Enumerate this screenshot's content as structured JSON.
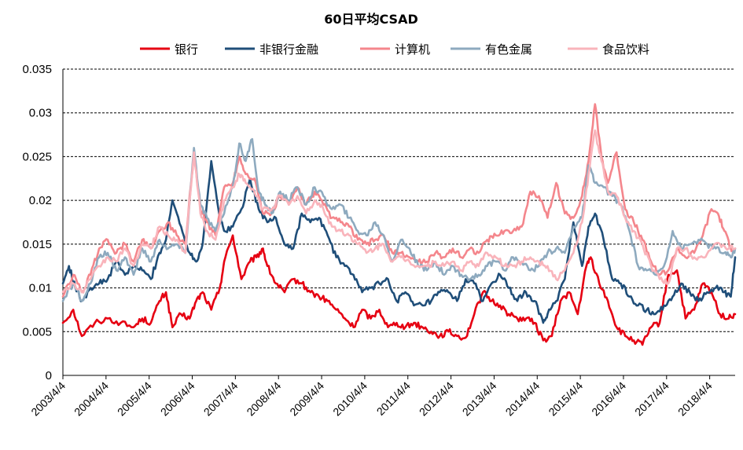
{
  "chart_data": {
    "type": "line",
    "title": "60日平均CSAD",
    "xlabel": "",
    "ylabel": "",
    "ylim": [
      0,
      0.035
    ],
    "yticks": [
      0,
      0.005,
      0.01,
      0.015,
      0.02,
      0.025,
      0.03,
      0.035
    ],
    "ytick_labels": [
      "0",
      "0.005",
      "0.01",
      "0.015",
      "0.02",
      "0.025",
      "0.03",
      "0.035"
    ],
    "xlim": [
      2003.26,
      2018.85
    ],
    "xticks": [
      2003.26,
      2004.26,
      2005.26,
      2006.26,
      2007.26,
      2008.26,
      2009.26,
      2010.26,
      2011.26,
      2012.26,
      2013.26,
      2014.26,
      2015.26,
      2016.26,
      2017.26,
      2018.26
    ],
    "xtick_labels": [
      "2003/4/4",
      "2004/4/4",
      "2005/4/4",
      "2006/4/4",
      "2007/4/4",
      "2008/4/4",
      "2009/4/4",
      "2010/4/4",
      "2011/4/4",
      "2012/4/4",
      "2013/4/4",
      "2014/4/4",
      "2015/4/4",
      "2016/4/4",
      "2017/4/4",
      "2018/4/4"
    ],
    "grid": true,
    "legend_position": "top",
    "series": [
      {
        "name": "银行",
        "color": "#e60012",
        "x": [
          2003.26,
          2003.5,
          2003.7,
          2004.0,
          2004.3,
          2004.6,
          2004.9,
          2005.1,
          2005.3,
          2005.5,
          2005.65,
          2005.8,
          2006.0,
          2006.2,
          2006.35,
          2006.5,
          2006.7,
          2006.9,
          2007.0,
          2007.2,
          2007.4,
          2007.6,
          2007.75,
          2007.9,
          2008.0,
          2008.2,
          2008.4,
          2008.6,
          2008.8,
          2009.0,
          2009.2,
          2009.4,
          2009.6,
          2009.8,
          2010.0,
          2010.2,
          2010.4,
          2010.6,
          2010.8,
          2011.0,
          2011.2,
          2011.4,
          2011.6,
          2011.8,
          2012.0,
          2012.2,
          2012.4,
          2012.6,
          2012.8,
          2013.0,
          2013.2,
          2013.4,
          2013.6,
          2013.8,
          2014.0,
          2014.2,
          2014.4,
          2014.6,
          2014.8,
          2015.0,
          2015.2,
          2015.4,
          2015.5,
          2015.7,
          2015.9,
          2016.1,
          2016.3,
          2016.5,
          2016.7,
          2016.9,
          2017.1,
          2017.3,
          2017.5,
          2017.7,
          2017.9,
          2018.1,
          2018.3,
          2018.5,
          2018.7,
          2018.85
        ],
        "values": [
          0.006,
          0.0075,
          0.0045,
          0.006,
          0.0065,
          0.006,
          0.0055,
          0.0065,
          0.006,
          0.0085,
          0.0095,
          0.0055,
          0.007,
          0.0065,
          0.0085,
          0.0095,
          0.0075,
          0.01,
          0.013,
          0.016,
          0.011,
          0.013,
          0.0135,
          0.0145,
          0.0125,
          0.0105,
          0.0095,
          0.011,
          0.0105,
          0.0095,
          0.009,
          0.0085,
          0.0075,
          0.0065,
          0.0055,
          0.0075,
          0.0065,
          0.0075,
          0.0055,
          0.006,
          0.0055,
          0.006,
          0.0055,
          0.005,
          0.0045,
          0.005,
          0.0045,
          0.0043,
          0.007,
          0.0095,
          0.0085,
          0.008,
          0.007,
          0.0065,
          0.0065,
          0.006,
          0.004,
          0.0045,
          0.0085,
          0.0095,
          0.007,
          0.0125,
          0.0135,
          0.0105,
          0.0085,
          0.0055,
          0.0045,
          0.004,
          0.0035,
          0.0055,
          0.006,
          0.0115,
          0.012,
          0.0065,
          0.0075,
          0.0105,
          0.0095,
          0.007,
          0.0065,
          0.007
        ]
      },
      {
        "name": "非银行金融",
        "color": "#1f4e79",
        "x": [
          2003.26,
          2003.4,
          2003.55,
          2003.7,
          2003.9,
          2004.1,
          2004.3,
          2004.5,
          2004.7,
          2004.9,
          2005.1,
          2005.3,
          2005.5,
          2005.65,
          2005.8,
          2006.0,
          2006.2,
          2006.35,
          2006.5,
          2006.7,
          2006.9,
          2007.0,
          2007.2,
          2007.4,
          2007.6,
          2007.8,
          2008.0,
          2008.2,
          2008.4,
          2008.6,
          2008.8,
          2009.0,
          2009.2,
          2009.4,
          2009.6,
          2009.8,
          2010.0,
          2010.2,
          2010.4,
          2010.6,
          2010.8,
          2011.0,
          2011.2,
          2011.4,
          2011.6,
          2011.8,
          2012.0,
          2012.2,
          2012.4,
          2012.6,
          2012.8,
          2013.0,
          2013.2,
          2013.4,
          2013.6,
          2013.8,
          2014.0,
          2014.2,
          2014.4,
          2014.5,
          2014.7,
          2014.9,
          2015.1,
          2015.3,
          2015.45,
          2015.6,
          2015.8,
          2016.0,
          2016.2,
          2016.4,
          2016.6,
          2016.8,
          2017.0,
          2017.2,
          2017.4,
          2017.6,
          2017.8,
          2018.0,
          2018.2,
          2018.4,
          2018.6,
          2018.75,
          2018.85
        ],
        "values": [
          0.0105,
          0.0125,
          0.01,
          0.0085,
          0.01,
          0.0105,
          0.011,
          0.013,
          0.0115,
          0.0125,
          0.012,
          0.011,
          0.014,
          0.0155,
          0.02,
          0.017,
          0.014,
          0.013,
          0.015,
          0.0245,
          0.018,
          0.0165,
          0.017,
          0.019,
          0.0225,
          0.019,
          0.0175,
          0.018,
          0.015,
          0.0145,
          0.0185,
          0.0175,
          0.018,
          0.016,
          0.0135,
          0.0125,
          0.0115,
          0.0095,
          0.01,
          0.0105,
          0.011,
          0.0085,
          0.0095,
          0.008,
          0.008,
          0.0085,
          0.0095,
          0.0095,
          0.0085,
          0.011,
          0.0105,
          0.0085,
          0.0105,
          0.0115,
          0.01,
          0.0085,
          0.0095,
          0.0085,
          0.006,
          0.007,
          0.0085,
          0.011,
          0.0175,
          0.0125,
          0.017,
          0.0185,
          0.0155,
          0.011,
          0.0105,
          0.009,
          0.008,
          0.0075,
          0.007,
          0.008,
          0.009,
          0.0105,
          0.0095,
          0.0085,
          0.0095,
          0.01,
          0.0095,
          0.009,
          0.0135
        ]
      },
      {
        "name": "计算机",
        "color": "#f4868c",
        "x": [
          2003.26,
          2003.5,
          2003.7,
          2003.9,
          2004.1,
          2004.3,
          2004.5,
          2004.7,
          2004.9,
          2005.1,
          2005.3,
          2005.5,
          2005.7,
          2005.9,
          2006.1,
          2006.3,
          2006.45,
          2006.6,
          2006.8,
          2007.0,
          2007.2,
          2007.35,
          2007.5,
          2007.7,
          2007.9,
          2008.1,
          2008.3,
          2008.5,
          2008.7,
          2008.9,
          2009.1,
          2009.3,
          2009.5,
          2009.7,
          2009.9,
          2010.1,
          2010.3,
          2010.5,
          2010.7,
          2010.9,
          2011.1,
          2011.3,
          2011.5,
          2011.7,
          2011.9,
          2012.1,
          2012.3,
          2012.5,
          2012.7,
          2012.9,
          2013.1,
          2013.3,
          2013.5,
          2013.7,
          2013.9,
          2014.1,
          2014.3,
          2014.5,
          2014.7,
          2014.9,
          2015.1,
          2015.3,
          2015.45,
          2015.6,
          2015.75,
          2015.9,
          2016.1,
          2016.3,
          2016.5,
          2016.7,
          2016.9,
          2017.1,
          2017.3,
          2017.5,
          2017.7,
          2017.9,
          2018.1,
          2018.3,
          2018.45,
          2018.6,
          2018.75,
          2018.85
        ],
        "values": [
          0.009,
          0.0115,
          0.0095,
          0.0115,
          0.0145,
          0.0155,
          0.014,
          0.015,
          0.013,
          0.0155,
          0.0145,
          0.0165,
          0.0175,
          0.016,
          0.015,
          0.0255,
          0.019,
          0.0175,
          0.016,
          0.0215,
          0.022,
          0.025,
          0.023,
          0.0225,
          0.0185,
          0.0185,
          0.0205,
          0.0195,
          0.0215,
          0.0195,
          0.021,
          0.0195,
          0.018,
          0.0175,
          0.017,
          0.0155,
          0.015,
          0.0155,
          0.016,
          0.014,
          0.014,
          0.0135,
          0.013,
          0.013,
          0.014,
          0.0135,
          0.0145,
          0.0135,
          0.0145,
          0.014,
          0.0155,
          0.016,
          0.0165,
          0.0165,
          0.017,
          0.021,
          0.0205,
          0.018,
          0.022,
          0.0185,
          0.018,
          0.0205,
          0.0245,
          0.031,
          0.025,
          0.022,
          0.0255,
          0.019,
          0.0175,
          0.0155,
          0.013,
          0.0115,
          0.012,
          0.0145,
          0.0135,
          0.014,
          0.016,
          0.019,
          0.0185,
          0.0165,
          0.0145,
          0.0145
        ]
      },
      {
        "name": "有色金属",
        "color": "#8eaabf",
        "x": [
          2003.26,
          2003.5,
          2003.7,
          2003.9,
          2004.1,
          2004.3,
          2004.5,
          2004.7,
          2004.9,
          2005.1,
          2005.3,
          2005.5,
          2005.7,
          2005.9,
          2006.1,
          2006.3,
          2006.45,
          2006.6,
          2006.8,
          2007.0,
          2007.2,
          2007.35,
          2007.5,
          2007.65,
          2007.8,
          2007.95,
          2008.1,
          2008.3,
          2008.5,
          2008.7,
          2008.9,
          2009.1,
          2009.3,
          2009.5,
          2009.7,
          2009.9,
          2010.1,
          2010.3,
          2010.5,
          2010.7,
          2010.9,
          2011.1,
          2011.3,
          2011.5,
          2011.7,
          2011.9,
          2012.1,
          2012.3,
          2012.5,
          2012.7,
          2012.9,
          2013.1,
          2013.3,
          2013.5,
          2013.7,
          2013.9,
          2014.1,
          2014.3,
          2014.5,
          2014.7,
          2014.9,
          2015.1,
          2015.3,
          2015.45,
          2015.6,
          2015.8,
          2016.0,
          2016.2,
          2016.4,
          2016.6,
          2016.8,
          2017.0,
          2017.2,
          2017.4,
          2017.6,
          2017.8,
          2018.0,
          2018.2,
          2018.4,
          2018.6,
          2018.75,
          2018.85
        ],
        "values": [
          0.0085,
          0.0105,
          0.0085,
          0.0105,
          0.0135,
          0.014,
          0.012,
          0.0135,
          0.0115,
          0.0145,
          0.013,
          0.0155,
          0.0145,
          0.015,
          0.014,
          0.026,
          0.0195,
          0.018,
          0.0165,
          0.0185,
          0.0215,
          0.0265,
          0.0245,
          0.027,
          0.021,
          0.0195,
          0.0185,
          0.021,
          0.02,
          0.0215,
          0.0195,
          0.0215,
          0.0205,
          0.019,
          0.0195,
          0.018,
          0.0165,
          0.016,
          0.0175,
          0.016,
          0.013,
          0.0155,
          0.0145,
          0.0125,
          0.012,
          0.013,
          0.0115,
          0.0125,
          0.0115,
          0.011,
          0.0115,
          0.0125,
          0.013,
          0.012,
          0.0135,
          0.013,
          0.012,
          0.0125,
          0.014,
          0.0145,
          0.014,
          0.017,
          0.018,
          0.024,
          0.022,
          0.0215,
          0.0205,
          0.0195,
          0.0165,
          0.0125,
          0.012,
          0.0115,
          0.0125,
          0.0165,
          0.0145,
          0.015,
          0.0155,
          0.015,
          0.0145,
          0.014,
          0.0135,
          0.0145
        ]
      },
      {
        "name": "食品饮料",
        "color": "#f9b4bb",
        "x": [
          2003.26,
          2003.5,
          2003.7,
          2003.9,
          2004.1,
          2004.3,
          2004.5,
          2004.7,
          2004.9,
          2005.1,
          2005.3,
          2005.5,
          2005.7,
          2005.9,
          2006.1,
          2006.3,
          2006.45,
          2006.6,
          2006.8,
          2007.0,
          2007.2,
          2007.35,
          2007.5,
          2007.7,
          2007.9,
          2008.1,
          2008.3,
          2008.5,
          2008.7,
          2008.9,
          2009.1,
          2009.3,
          2009.5,
          2009.7,
          2009.9,
          2010.1,
          2010.3,
          2010.5,
          2010.7,
          2010.9,
          2011.1,
          2011.3,
          2011.5,
          2011.7,
          2011.9,
          2012.1,
          2012.3,
          2012.5,
          2012.7,
          2012.9,
          2013.1,
          2013.3,
          2013.5,
          2013.7,
          2013.9,
          2014.1,
          2014.3,
          2014.5,
          2014.7,
          2014.9,
          2015.1,
          2015.3,
          2015.45,
          2015.6,
          2015.75,
          2015.9,
          2016.1,
          2016.3,
          2016.5,
          2016.7,
          2016.9,
          2017.1,
          2017.3,
          2017.5,
          2017.7,
          2017.9,
          2018.1,
          2018.3,
          2018.5,
          2018.7,
          2018.85
        ],
        "values": [
          0.0095,
          0.0105,
          0.0095,
          0.011,
          0.0125,
          0.0135,
          0.013,
          0.0145,
          0.0125,
          0.015,
          0.0145,
          0.017,
          0.016,
          0.0155,
          0.014,
          0.0255,
          0.0185,
          0.0165,
          0.0155,
          0.02,
          0.0215,
          0.023,
          0.022,
          0.021,
          0.019,
          0.019,
          0.0205,
          0.0195,
          0.0205,
          0.0185,
          0.02,
          0.019,
          0.017,
          0.0165,
          0.016,
          0.015,
          0.014,
          0.0145,
          0.015,
          0.013,
          0.0135,
          0.013,
          0.0125,
          0.0125,
          0.013,
          0.0125,
          0.013,
          0.012,
          0.013,
          0.0125,
          0.014,
          0.0135,
          0.0125,
          0.0125,
          0.013,
          0.0135,
          0.013,
          0.0125,
          0.011,
          0.012,
          0.014,
          0.0175,
          0.023,
          0.028,
          0.0245,
          0.021,
          0.0205,
          0.018,
          0.0165,
          0.015,
          0.0125,
          0.011,
          0.0105,
          0.0145,
          0.0145,
          0.0135,
          0.0135,
          0.0145,
          0.015,
          0.0145,
          0.0145
        ]
      }
    ]
  }
}
